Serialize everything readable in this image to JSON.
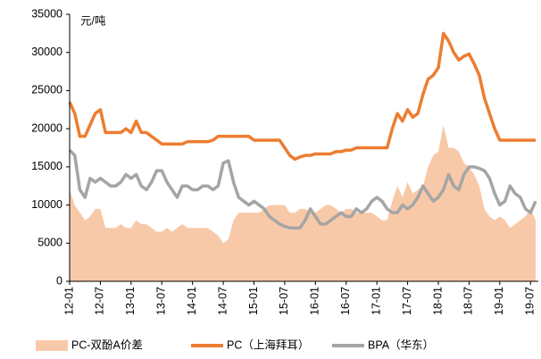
{
  "chart_data": {
    "type": "line",
    "annotation": "元/吨",
    "categories": [
      "12-01",
      null,
      null,
      null,
      null,
      null,
      "12-07",
      null,
      null,
      null,
      null,
      null,
      "13-01",
      null,
      null,
      null,
      null,
      null,
      "13-07",
      null,
      null,
      null,
      null,
      null,
      "14-01",
      null,
      null,
      null,
      null,
      null,
      "14-07",
      null,
      null,
      null,
      null,
      null,
      "15-01",
      null,
      null,
      null,
      null,
      null,
      "15-07",
      null,
      null,
      null,
      null,
      null,
      "16-01",
      null,
      null,
      null,
      null,
      null,
      "16-07",
      null,
      null,
      null,
      null,
      null,
      "17-01",
      null,
      null,
      null,
      null,
      null,
      "17-07",
      null,
      null,
      null,
      null,
      null,
      "18-01",
      null,
      null,
      null,
      null,
      null,
      "18-07",
      null,
      null,
      null,
      null,
      null,
      "19-01",
      null,
      null,
      null,
      null,
      null,
      "19-07",
      null
    ],
    "series": [
      {
        "name": "PC-双酚A价差",
        "type": "area",
        "color": "#f8c9a9",
        "values": [
          12000,
          10000,
          9000,
          8000,
          8500,
          9500,
          9500,
          7000,
          7000,
          7000,
          7500,
          7000,
          7000,
          8000,
          7500,
          7500,
          7000,
          6500,
          6500,
          7000,
          6500,
          7000,
          7500,
          7000,
          7000,
          7000,
          7000,
          7000,
          6500,
          6000,
          5000,
          5500,
          8000,
          9000,
          9000,
          9000,
          9000,
          9000,
          9500,
          10000,
          10000,
          10000,
          10000,
          9000,
          9000,
          9500,
          9500,
          9000,
          9000,
          9500,
          10000,
          10000,
          9500,
          9000,
          9500,
          9500,
          9000,
          9000,
          9000,
          9000,
          8500,
          8000,
          8000,
          10500,
          12500,
          11000,
          13000,
          11500,
          12000,
          12500,
          15000,
          16500,
          17000,
          20500,
          17500,
          17500,
          17000,
          15500,
          15000,
          14000,
          12500,
          9500,
          8500,
          8000,
          8500,
          8000,
          7000,
          7500,
          8000,
          8500,
          9500,
          8000
        ]
      },
      {
        "name": "PC（上海拜耳）",
        "type": "line",
        "color": "#ed7d31",
        "values": [
          23500,
          22000,
          19000,
          19000,
          20500,
          22000,
          22500,
          19500,
          19500,
          19500,
          19500,
          20000,
          19500,
          21000,
          19500,
          19500,
          19000,
          18500,
          18000,
          18000,
          18000,
          18000,
          18000,
          18300,
          18300,
          18300,
          18300,
          18300,
          18500,
          19000,
          19000,
          19000,
          19000,
          19000,
          19000,
          19000,
          18500,
          18500,
          18500,
          18500,
          18500,
          18500,
          17500,
          16500,
          16000,
          16300,
          16500,
          16500,
          16700,
          16700,
          16700,
          16700,
          17000,
          17000,
          17200,
          17200,
          17500,
          17500,
          17500,
          17500,
          17500,
          17500,
          17500,
          20000,
          22000,
          21000,
          22500,
          21500,
          22000,
          24500,
          26500,
          27000,
          28000,
          32500,
          31500,
          30000,
          29000,
          29500,
          29800,
          28500,
          27000,
          24000,
          22000,
          20000,
          18500,
          18500,
          18500,
          18500,
          18500,
          18500,
          18500,
          18500
        ]
      },
      {
        "name": "BPA（华东）",
        "type": "line",
        "color": "#a5a5a5",
        "values": [
          17200,
          16500,
          12000,
          11000,
          13500,
          13000,
          13500,
          13000,
          12500,
          12500,
          13000,
          14000,
          13500,
          14000,
          12500,
          12000,
          13000,
          14500,
          14500,
          13000,
          12000,
          11000,
          12500,
          12500,
          12000,
          12000,
          12500,
          12500,
          12000,
          12500,
          15500,
          15800,
          13000,
          11000,
          10500,
          10000,
          10500,
          10000,
          9500,
          8500,
          8000,
          7500,
          7200,
          7000,
          7000,
          7000,
          8000,
          9500,
          8500,
          7500,
          7500,
          8000,
          8500,
          9000,
          8500,
          8500,
          9500,
          9000,
          9500,
          10500,
          11000,
          10500,
          9500,
          9000,
          9000,
          10000,
          9500,
          10000,
          11000,
          12500,
          11500,
          10500,
          11000,
          12000,
          14000,
          12500,
          12000,
          14000,
          15000,
          15000,
          14800,
          14500,
          13500,
          11500,
          10000,
          10500,
          12500,
          11500,
          11000,
          9500,
          9000,
          10500
        ]
      }
    ],
    "ylim": [
      0,
      35000
    ],
    "yticks": [
      0,
      5000,
      10000,
      15000,
      20000,
      25000,
      30000,
      35000
    ],
    "legend": "bottom",
    "grid": false
  }
}
